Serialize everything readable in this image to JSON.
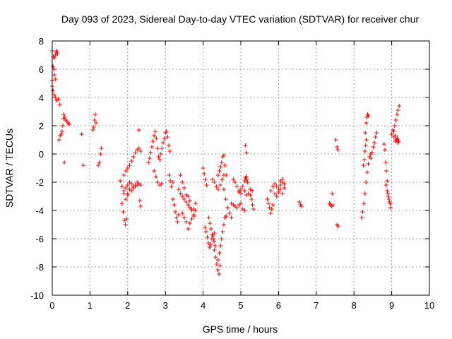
{
  "chart_data": {
    "type": "scatter",
    "title": "Day 093 of 2023, Sidereal Day-to-day VTEC variation (SDTVAR) for receiver chur",
    "xlabel": "GPS time / hours",
    "ylabel": "SDTVAR / TECUs",
    "xlim": [
      0,
      10
    ],
    "ylim": [
      -10,
      8
    ],
    "x_ticks": [
      "0",
      "1",
      "2",
      "3",
      "4",
      "5",
      "6",
      "7",
      "8",
      "9",
      "10"
    ],
    "y_ticks": [
      "-10",
      "-8",
      "-6",
      "-4",
      "-2",
      "0",
      "2",
      "4",
      "6",
      "8"
    ],
    "grid": true,
    "marker": "+",
    "color": "#ff0000",
    "segments": [
      {
        "x": [
          0.0,
          0.03,
          0.06,
          0.08,
          0.1,
          0.12,
          0.14
        ],
        "y": [
          7.3,
          6.9,
          6.8,
          7.0,
          7.2,
          7.3,
          7.1
        ]
      },
      {
        "x": [
          0.0,
          0.02,
          0.04,
          0.06,
          0.08
        ],
        "y": [
          5.2,
          6.2,
          6.0,
          5.6,
          5.3
        ]
      },
      {
        "x": [
          0.0,
          0.02,
          0.05,
          0.08,
          0.12,
          0.16,
          0.2
        ],
        "y": [
          4.8,
          4.5,
          4.2,
          4.0,
          3.8,
          3.9,
          3.5
        ]
      },
      {
        "x": [
          0.18,
          0.21,
          0.24,
          0.26,
          0.28,
          0.3
        ],
        "y": [
          1.0,
          1.3,
          1.4,
          1.6,
          2.0,
          2.5
        ]
      },
      {
        "x": [
          0.3,
          0.33,
          0.36,
          0.39,
          0.42,
          0.45
        ],
        "y": [
          2.8,
          2.6,
          2.4,
          2.3,
          2.2,
          2.1
        ]
      },
      {
        "x": [
          0.32
        ],
        "y": [
          -0.6
        ]
      },
      {
        "x": [
          0.78
        ],
        "y": [
          1.4
        ]
      },
      {
        "x": [
          0.82
        ],
        "y": [
          -0.8
        ]
      },
      {
        "x": [
          1.08,
          1.1,
          1.12,
          1.14,
          1.16
        ],
        "y": [
          1.7,
          1.9,
          2.4,
          2.8,
          2.2
        ]
      },
      {
        "x": [
          1.22,
          1.25,
          1.28,
          1.3
        ],
        "y": [
          -0.8,
          -0.6,
          0.0,
          0.4
        ]
      },
      {
        "x": [
          1.8,
          1.85,
          1.9,
          1.95,
          2.0
        ],
        "y": [
          -1.9,
          -2.3,
          -2.8,
          -3.2,
          -2.9
        ]
      },
      {
        "x": [
          1.85,
          1.88,
          1.91,
          1.94,
          1.97
        ],
        "y": [
          -3.5,
          -4.1,
          -4.7,
          -5.0,
          -4.6
        ]
      },
      {
        "x": [
          1.9,
          1.95,
          2.0,
          2.05,
          2.1,
          2.15,
          2.2,
          2.25,
          2.3,
          2.35
        ],
        "y": [
          -1.5,
          -1.2,
          -1.0,
          -0.8,
          -0.5,
          -0.2,
          0.1,
          0.3,
          0.4,
          0.2
        ]
      },
      {
        "x": [
          1.9,
          1.95,
          2.0,
          2.05,
          2.1,
          2.15,
          2.2,
          2.25,
          2.3,
          2.35
        ],
        "y": [
          -2.6,
          -2.4,
          -2.2,
          -2.0,
          -2.1,
          -2.3,
          -2.2,
          -2.0,
          -2.1,
          -2.2
        ]
      },
      {
        "x": [
          2.0,
          2.05,
          2.1,
          2.15,
          2.2,
          2.25
        ],
        "y": [
          -2.8,
          -2.5,
          -2.6,
          -2.4,
          -2.3,
          -2.2
        ]
      },
      {
        "x": [
          2.3,
          2.32,
          2.34
        ],
        "y": [
          1.7,
          -3.3,
          -3.7
        ]
      },
      {
        "x": [
          2.55,
          2.58,
          2.61,
          2.64,
          2.67,
          2.7,
          2.73,
          2.76,
          2.79,
          2.82
        ],
        "y": [
          -0.6,
          -0.3,
          0.1,
          0.5,
          0.9,
          1.3,
          1.6,
          1.1,
          0.4,
          -0.2
        ]
      },
      {
        "x": [
          2.7,
          2.75,
          2.8,
          2.85,
          2.9
        ],
        "y": [
          -1.2,
          -1.6,
          -2.0,
          -2.2,
          -2.1
        ]
      },
      {
        "x": [
          2.85,
          2.88,
          2.91,
          2.94,
          2.97,
          3.0,
          3.03,
          3.06,
          3.09,
          3.12
        ],
        "y": [
          -0.4,
          0.0,
          0.4,
          0.8,
          1.1,
          1.5,
          1.6,
          1.2,
          0.6,
          0.2
        ]
      },
      {
        "x": [
          3.1,
          3.13,
          3.16,
          3.2
        ],
        "y": [
          -1.5,
          -1.9,
          -2.3,
          -2.0
        ]
      },
      {
        "x": [
          3.2,
          3.23,
          3.26,
          3.29,
          3.32,
          3.35
        ],
        "y": [
          -3.2,
          -3.6,
          -4.1,
          -4.5,
          -4.8,
          -4.3
        ]
      },
      {
        "x": [
          3.35,
          3.4,
          3.45,
          3.5,
          3.55,
          3.6,
          3.65,
          3.7,
          3.75,
          3.8
        ],
        "y": [
          -2.5,
          -2.8,
          -3.0,
          -3.2,
          -3.4,
          -3.6,
          -3.8,
          -4.0,
          -3.9,
          -3.5
        ]
      },
      {
        "x": [
          3.45,
          3.5,
          3.55,
          3.6,
          3.65,
          3.7,
          3.75
        ],
        "y": [
          -4.2,
          -4.5,
          -4.8,
          -5.3,
          -4.9,
          -4.6,
          -4.4
        ]
      },
      {
        "x": [
          3.4,
          3.45,
          3.5,
          3.55
        ],
        "y": [
          -1.5,
          -2.0,
          -2.4,
          -2.9
        ]
      },
      {
        "x": [
          3.6,
          3.65,
          3.7,
          3.75,
          3.8
        ],
        "y": [
          -3.0,
          -3.3,
          -3.9,
          -4.3,
          -4.0
        ]
      },
      {
        "x": [
          4.0,
          4.03,
          4.06,
          4.09
        ],
        "y": [
          -1.0,
          -1.4,
          -1.8,
          -2.2
        ]
      },
      {
        "x": [
          4.05,
          4.08,
          4.11,
          4.14,
          4.17,
          4.2,
          4.23,
          4.26,
          4.29,
          4.32
        ],
        "y": [
          -5.2,
          -5.5,
          -5.9,
          -6.3,
          -6.6,
          -6.4,
          -6.0,
          -5.8,
          -6.2,
          -6.5
        ]
      },
      {
        "x": [
          4.15,
          4.18,
          4.21,
          4.24,
          4.27,
          4.3
        ],
        "y": [
          -4.5,
          -4.9,
          -5.3,
          -5.7,
          -6.0,
          -5.6
        ]
      },
      {
        "x": [
          4.3,
          4.33,
          4.36,
          4.39,
          4.42,
          4.45
        ],
        "y": [
          -6.8,
          -7.3,
          -7.8,
          -8.2,
          -8.5,
          -7.9
        ]
      },
      {
        "x": [
          4.4,
          4.43,
          4.46,
          4.49,
          4.52,
          4.55,
          4.58,
          4.61
        ],
        "y": [
          -7.5,
          -7.0,
          -6.5,
          -6.0,
          -5.5,
          -5.0,
          -4.5,
          -4.4
        ]
      },
      {
        "x": [
          4.25,
          4.3,
          4.35,
          4.4,
          4.45,
          4.5,
          4.55
        ],
        "y": [
          -1.8,
          -2.0,
          -2.3,
          -2.5,
          -2.2,
          -1.8,
          -1.5
        ]
      },
      {
        "x": [
          4.4,
          4.43,
          4.46,
          4.49,
          4.52,
          4.55,
          4.58,
          4.61
        ],
        "y": [
          -1.5,
          -1.2,
          -0.9,
          -0.6,
          -0.2,
          -0.1,
          -0.8,
          -1.5
        ]
      },
      {
        "x": [
          4.55,
          4.6,
          4.65,
          4.7,
          4.75
        ],
        "y": [
          -2.5,
          -3.2,
          -3.8,
          -4.2,
          -4.5
        ]
      },
      {
        "x": [
          4.75,
          4.8,
          4.85,
          4.9,
          4.95,
          5.0,
          5.05,
          5.1
        ],
        "y": [
          -3.5,
          -3.6,
          -3.7,
          -3.8,
          -3.6,
          -3.5,
          -3.9,
          -4.0
        ]
      },
      {
        "x": [
          4.8,
          4.85,
          4.9,
          4.95,
          5.0
        ],
        "y": [
          -1.8,
          -2.0,
          -2.3,
          -2.6,
          -2.8
        ]
      },
      {
        "x": [
          4.95,
          5.0,
          5.05,
          5.1,
          5.15,
          5.2,
          5.25,
          5.3
        ],
        "y": [
          -2.7,
          -2.5,
          -2.3,
          -2.6,
          -2.9,
          -2.8,
          -2.5,
          -2.6
        ]
      },
      {
        "x": [
          5.1,
          5.12,
          5.14,
          5.16,
          5.18
        ],
        "y": [
          -1.9,
          -1.7,
          -1.6,
          -1.8,
          -2.0
        ]
      },
      {
        "x": [
          5.12,
          5.15
        ],
        "y": [
          0.6,
          0.1
        ]
      },
      {
        "x": [
          5.25,
          5.28,
          5.31,
          5.34
        ],
        "y": [
          -2.9,
          -3.2,
          -3.6,
          -3.9
        ]
      },
      {
        "x": [
          5.7,
          5.73,
          5.76,
          5.79,
          5.82,
          5.85
        ],
        "y": [
          -3.2,
          -3.5,
          -3.8,
          -4.2,
          -3.9,
          -3.6
        ]
      },
      {
        "x": [
          5.8,
          5.85,
          5.9,
          5.95,
          6.0,
          6.05,
          6.1,
          6.15
        ],
        "y": [
          -2.6,
          -2.3,
          -2.1,
          -2.3,
          -2.5,
          -2.2,
          -2.0,
          -2.4
        ]
      },
      {
        "x": [
          5.9,
          5.95,
          6.0,
          6.05,
          6.1
        ],
        "y": [
          -2.8,
          -3.0,
          -2.7,
          -2.5,
          -2.8
        ]
      },
      {
        "x": [
          6.05,
          6.1,
          6.15
        ],
        "y": [
          -1.9,
          -1.8,
          -2.1
        ]
      },
      {
        "x": [
          6.55,
          6.58,
          6.61
        ],
        "y": [
          -3.4,
          -3.6,
          -3.7
        ]
      },
      {
        "x": [
          7.35,
          7.38,
          7.41,
          7.44
        ],
        "y": [
          -3.5,
          -3.6,
          -3.7,
          -3.6
        ]
      },
      {
        "x": [
          7.42
        ],
        "y": [
          -2.8
        ]
      },
      {
        "x": [
          7.52,
          7.55,
          7.57
        ],
        "y": [
          1.0,
          0.5,
          0.3
        ]
      },
      {
        "x": [
          7.55,
          7.58
        ],
        "y": [
          -5.0,
          -5.1
        ]
      },
      {
        "x": [
          8.2,
          8.23,
          8.26,
          8.29,
          8.32,
          8.35,
          8.38,
          8.41,
          8.44
        ],
        "y": [
          -4.5,
          -4.1,
          -3.5,
          -2.8,
          -2.0,
          -1.3,
          -0.7,
          -0.2,
          0.0
        ]
      },
      {
        "x": [
          8.25,
          8.27,
          8.29,
          8.31,
          8.33
        ],
        "y": [
          -0.8,
          -0.4,
          0.2,
          0.6,
          1.0
        ]
      },
      {
        "x": [
          8.3,
          8.32,
          8.34,
          8.36,
          8.38
        ],
        "y": [
          1.5,
          2.2,
          2.6,
          2.8,
          2.7
        ]
      },
      {
        "x": [
          8.45,
          8.48,
          8.51,
          8.54,
          8.57,
          8.6
        ],
        "y": [
          -0.3,
          0.1,
          0.5,
          0.8,
          1.2,
          1.5
        ]
      },
      {
        "x": [
          8.8,
          8.82,
          8.84,
          8.86,
          8.88
        ],
        "y": [
          0.7,
          0.3,
          -0.6,
          -1.2,
          -1.9
        ]
      },
      {
        "x": [
          8.85,
          8.88,
          8.91,
          8.94,
          8.97
        ],
        "y": [
          -2.2,
          -2.6,
          -3.0,
          -3.4,
          -3.8
        ]
      },
      {
        "x": [
          8.9,
          8.93,
          8.96
        ],
        "y": [
          -2.8,
          -3.2,
          -3.5
        ]
      },
      {
        "x": [
          9.0,
          9.03,
          9.06,
          9.09,
          9.12,
          9.15,
          9.18
        ],
        "y": [
          1.4,
          1.7,
          1.2,
          0.9,
          1.0,
          1.1,
          0.9
        ]
      },
      {
        "x": [
          9.05,
          9.08,
          9.11,
          9.14,
          9.17,
          9.2
        ],
        "y": [
          1.6,
          2.0,
          2.4,
          2.8,
          3.1,
          3.4
        ]
      },
      {
        "x": [
          9.1,
          9.13,
          9.16,
          9.19
        ],
        "y": [
          1.3,
          1.0,
          0.8,
          0.9
        ]
      }
    ]
  }
}
